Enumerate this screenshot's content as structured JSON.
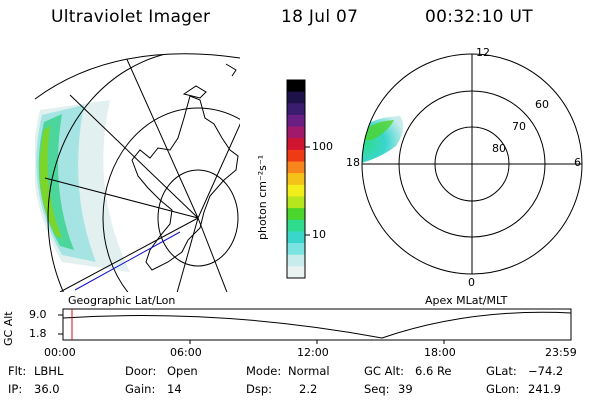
{
  "header": {
    "instrument": "Ultraviolet Imager",
    "date": "18 Jul 07",
    "time": "00:32:10 UT"
  },
  "panels": {
    "geo_label": "Geographic Lat/Lon",
    "apex_label": "Apex MLat/MLT"
  },
  "colorbar": {
    "unit_label": "photon cm⁻²s⁻¹",
    "ticks": [
      "100",
      "10"
    ],
    "colors": [
      "#000000",
      "#1c1248",
      "#3a1d6e",
      "#6b1f85",
      "#a0196a",
      "#cf1530",
      "#ef3a16",
      "#f9861c",
      "#f5c21a",
      "#f2ee1c",
      "#b6e61e",
      "#4cd52a",
      "#2fdc8e",
      "#3ad6cc",
      "#7ce3e3",
      "#c8ecec",
      "#eaf2f2"
    ]
  },
  "polar": {
    "mlt_labels": {
      "top": "12",
      "bottom": "0",
      "left": "18",
      "right": "6"
    },
    "lat_labels": [
      "60",
      "70",
      "80"
    ]
  },
  "altitude": {
    "axis_title": "GC Alt",
    "y_ticks": [
      "9.0",
      "1.8"
    ],
    "x_ticks": [
      "00:00",
      "06:00",
      "12:00",
      "18:00",
      "23:59"
    ]
  },
  "info": {
    "flt_label": "Flt:",
    "flt_value": "LBHL",
    "ip_label": "IP:",
    "ip_value": "36.0",
    "door_label": "Door:",
    "door_value": "Open",
    "gain_label": "Gain:",
    "gain_value": "14",
    "mode_label": "Mode:",
    "mode_value": "Normal",
    "dsp_label": "Dsp:",
    "dsp_value": "2.2",
    "gcalt_label": "GC Alt:",
    "gcalt_value": "6.6 Re",
    "seq_label": "Seq:",
    "seq_value": "39",
    "glat_label": "GLat:",
    "glat_value": "−74.2",
    "glon_label": "GLon:",
    "glon_value": "241.9"
  }
}
